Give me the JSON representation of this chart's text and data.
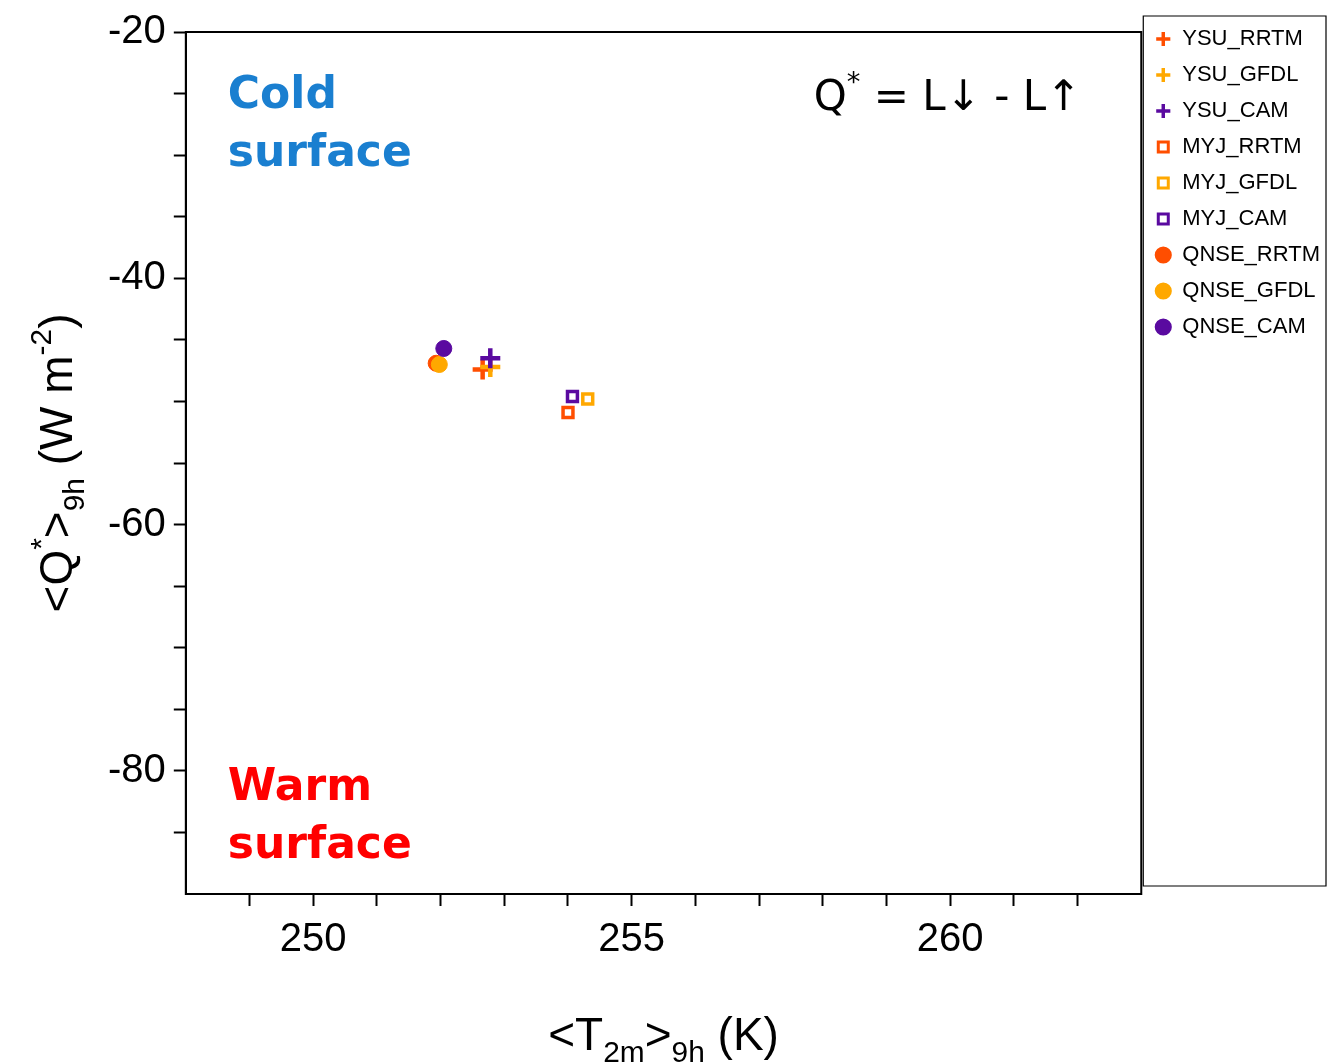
{
  "chart_data": {
    "type": "scatter",
    "xlabel": "<T$_{2m}$>$_{9h}$ (K)",
    "ylabel": "<Q$^{*}$>$_{9h}$ (W m$^{-2}$)",
    "annotations": [
      "Cold surface",
      "Q$^{*}$ = L↓ - L↑",
      "Warm surface"
    ],
    "xlim": [
      248,
      263
    ],
    "ylim": [
      -90,
      -20
    ],
    "xticks": [
      {
        "value": 249,
        "label": null
      },
      250,
      {
        "value": 251,
        "label": null
      },
      {
        "value": 252,
        "label": null
      },
      {
        "value": 253,
        "label": null
      },
      {
        "value": 254,
        "label": null
      },
      255,
      {
        "value": 256,
        "label": null
      },
      {
        "value": 257,
        "label": null
      },
      {
        "value": 258,
        "label": null
      },
      {
        "value": 259,
        "label": null
      },
      260,
      {
        "value": 261,
        "label": null
      },
      {
        "value": 262,
        "label": null
      }
    ],
    "yticks": [
      {
        "value": -85,
        "label": null
      },
      -80,
      {
        "value": -75,
        "label": null
      },
      {
        "value": -70,
        "label": null
      },
      {
        "value": -65,
        "label": null
      },
      -60,
      {
        "value": -55,
        "label": null
      },
      {
        "value": -50,
        "label": null
      },
      {
        "value": -45,
        "label": null
      },
      -40,
      {
        "value": -35,
        "label": null
      },
      {
        "value": -30,
        "label": null
      },
      {
        "value": -25,
        "label": null
      },
      -20
    ],
    "grid": false,
    "legend": "right",
    "series": [
      {
        "name": "YSU_RRTM",
        "color": "#ff4e00",
        "marker": "cross",
        "x": [
          252.66
        ],
        "values": [
          -47.4
        ]
      },
      {
        "name": "YSU_GFDL",
        "color": "#ffa800",
        "marker": "cross",
        "x": [
          252.78
        ],
        "values": [
          -47.2
        ]
      },
      {
        "name": "YSU_CAM",
        "color": "#5a0aa0",
        "marker": "cross",
        "x": [
          252.78
        ],
        "values": [
          -46.5
        ]
      },
      {
        "name": "MYJ_RRTM",
        "color": "#ff4e00",
        "marker": "square",
        "x": [
          254.0
        ],
        "values": [
          -50.9
        ]
      },
      {
        "name": "MYJ_GFDL",
        "color": "#ffa800",
        "marker": "square",
        "x": [
          254.31
        ],
        "values": [
          -49.8
        ]
      },
      {
        "name": "MYJ_CAM",
        "color": "#5a0aa0",
        "marker": "square",
        "x": [
          254.07
        ],
        "values": [
          -49.6
        ]
      },
      {
        "name": "QNSE_RRTM",
        "color": "#ff4e00",
        "marker": "circle",
        "x": [
          251.93
        ],
        "values": [
          -46.9
        ]
      },
      {
        "name": "QNSE_GFDL",
        "color": "#ffa800",
        "marker": "circle",
        "x": [
          251.98
        ],
        "values": [
          -47.0
        ]
      },
      {
        "name": "QNSE_CAM",
        "color": "#5a0aa0",
        "marker": "circle",
        "x": [
          252.05
        ],
        "values": [
          -45.7
        ]
      }
    ]
  }
}
